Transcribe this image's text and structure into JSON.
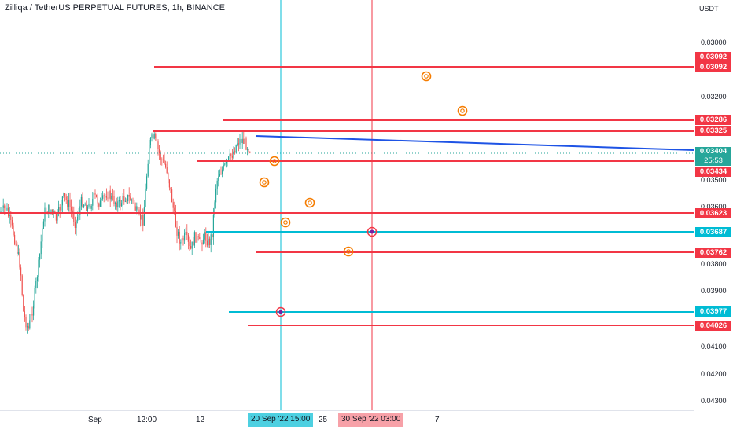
{
  "chart": {
    "title": "Zilliqa / TetherUS PERPETUAL FUTURES, 1h, BINANCE",
    "current_price": "0.03404",
    "countdown": "25:53"
  },
  "price_axis": {
    "unit": "USDT",
    "ticks": [
      "0.03000",
      "0.03200",
      "0.03500",
      "0.03600",
      "0.03800",
      "0.03900",
      "0.04100",
      "0.04200",
      "0.04300"
    ],
    "tags": [
      {
        "label": "0.03092",
        "color": "#f23645"
      },
      {
        "label": "0.03092",
        "color": "#f23645"
      },
      {
        "label": "0.03286",
        "color": "#f23645"
      },
      {
        "label": "0.03325",
        "color": "#f23645"
      },
      {
        "label": "0.03434",
        "color": "#f23645"
      },
      {
        "label": "0.03623",
        "color": "#f23645"
      },
      {
        "label": "0.03687",
        "color": "#00bcd4"
      },
      {
        "label": "0.03762",
        "color": "#f23645"
      },
      {
        "label": "0.03977",
        "color": "#00bcd4"
      },
      {
        "label": "0.04026",
        "color": "#f23645"
      }
    ]
  },
  "time_axis": {
    "ticks": [
      "Sep",
      "12:00",
      "12",
      "25",
      "7"
    ],
    "cursor_tags": [
      {
        "label": "20 Sep '22   15:00",
        "color": "#4dd0e1"
      },
      {
        "label": "30 Sep '22   03:00",
        "color": "#f7a1a8"
      }
    ]
  },
  "colors": {
    "up": "#26a69a",
    "down": "#ef5350",
    "red_line": "#f23645",
    "cyan_line": "#00bcd4",
    "trend_line": "#1e53e5",
    "target_marker": "#f57c00",
    "current_price_bg": "#26a69a"
  }
}
